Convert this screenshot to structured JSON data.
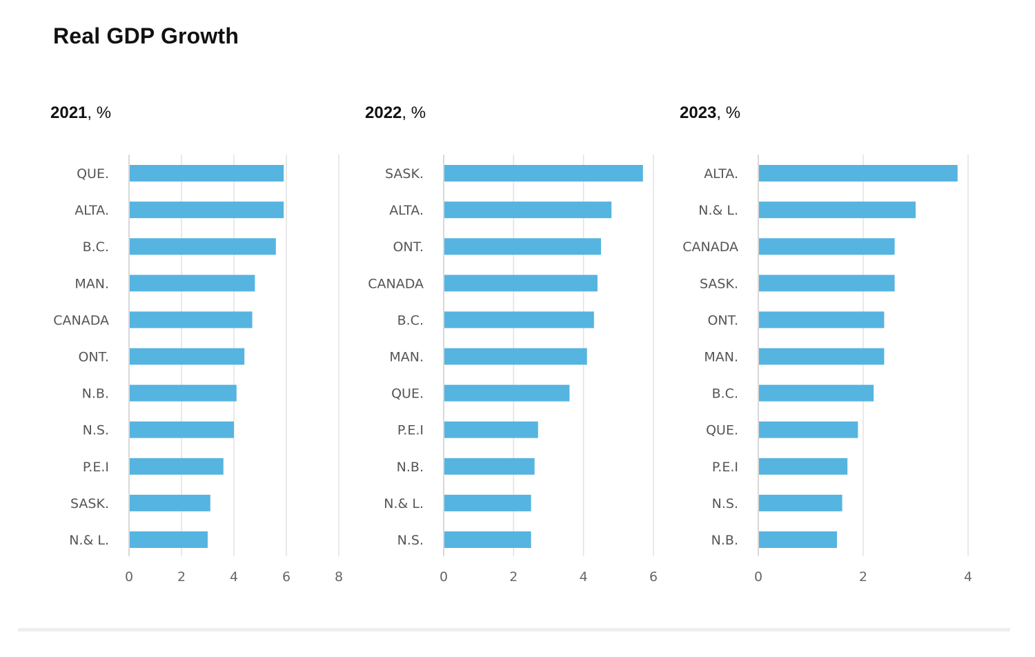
{
  "title": "Real GDP Growth",
  "colors": {
    "bar": "#56b4e0",
    "grid": "#e2e2e2",
    "label": "#555555"
  },
  "chart_data": [
    {
      "type": "bar",
      "orientation": "horizontal",
      "title_year": "2021",
      "title_unit": ", %",
      "categories": [
        "QUE.",
        "ALTA.",
        "B.C.",
        "MAN.",
        "CANADA",
        "ONT.",
        "N.B.",
        "N.S.",
        "P.E.I",
        "SASK.",
        "N.& L."
      ],
      "values": [
        5.9,
        5.9,
        5.6,
        4.8,
        4.7,
        4.4,
        4.1,
        4.0,
        3.6,
        3.1,
        3.0
      ],
      "xlim": [
        0,
        8
      ],
      "ticks": [
        "0",
        "2",
        "4",
        "6",
        "8"
      ],
      "grid": true
    },
    {
      "type": "bar",
      "orientation": "horizontal",
      "title_year": "2022",
      "title_unit": ", %",
      "categories": [
        "SASK.",
        "ALTA.",
        "ONT.",
        "CANADA",
        "B.C.",
        "MAN.",
        "QUE.",
        "P.E.I",
        "N.B.",
        "N.& L.",
        "N.S."
      ],
      "values": [
        5.7,
        4.8,
        4.5,
        4.4,
        4.3,
        4.1,
        3.6,
        2.7,
        2.6,
        2.5,
        2.5
      ],
      "xlim": [
        0,
        6
      ],
      "ticks": [
        "0",
        "2",
        "4",
        "6"
      ],
      "grid": true
    },
    {
      "type": "bar",
      "orientation": "horizontal",
      "title_year": "2023",
      "title_unit": ", %",
      "categories": [
        "ALTA.",
        "N.& L.",
        "CANADA",
        "SASK.",
        "ONT.",
        "MAN.",
        "B.C.",
        "QUE.",
        "P.E.I",
        "N.S.",
        "N.B."
      ],
      "values": [
        3.8,
        3.0,
        2.6,
        2.6,
        2.4,
        2.4,
        2.2,
        1.9,
        1.7,
        1.6,
        1.5
      ],
      "xlim": [
        0,
        4
      ],
      "ticks": [
        "0",
        "2",
        "4"
      ],
      "grid": true
    }
  ]
}
